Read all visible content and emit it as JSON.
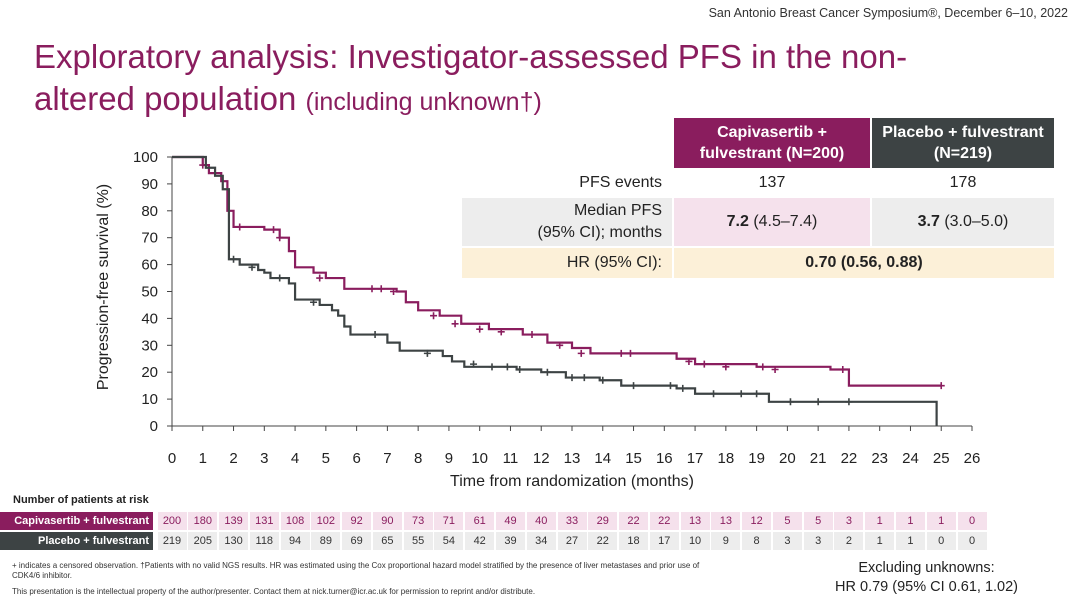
{
  "conference": "San Antonio Breast Cancer Symposium®, December 6–10, 2022",
  "title_main": "Exploratory analysis: Investigator-assessed PFS in the non-altered population",
  "title_sub": "(including unknown†)",
  "table": {
    "header_cap": "Capivasertib + fulvestrant (N=200)",
    "header_pla": "Placebo + fulvestrant (N=219)",
    "pfs_label": "PFS events",
    "pfs_cap": "137",
    "pfs_pla": "178",
    "median_label_1": "Median PFS",
    "median_label_2": "(95% CI); months",
    "median_cap_bold": "7.2",
    "median_cap_ci": "(4.5–7.4)",
    "median_pla_bold": "3.7",
    "median_pla_ci": "(3.0–5.0)",
    "hr_label": "HR (95% CI):",
    "hr_value": "0.70 (0.56, 0.88)"
  },
  "colors": {
    "capivasertib": "#8a1d5e",
    "placebo": "#3d4344",
    "table_median_cap": "#f5e1ec",
    "table_hr": "#fcf0d8"
  },
  "chart_data": {
    "type": "line",
    "xlabel": "Time from randomization (months)",
    "ylabel": "Progression-free survival (%)",
    "xlim": [
      0,
      26
    ],
    "ylim": [
      0,
      100
    ],
    "xticks": [
      0,
      1,
      2,
      3,
      4,
      5,
      6,
      7,
      8,
      9,
      10,
      11,
      12,
      13,
      14,
      15,
      16,
      17,
      18,
      19,
      20,
      21,
      22,
      23,
      24,
      25,
      26
    ],
    "yticks": [
      0,
      10,
      20,
      30,
      40,
      50,
      60,
      70,
      80,
      90,
      100
    ],
    "series": [
      {
        "name": "Capivasertib + fulvestrant",
        "color": "#8a1d5e",
        "steps": [
          [
            0,
            100
          ],
          [
            0.6,
            100
          ],
          [
            1.0,
            97
          ],
          [
            1.2,
            94
          ],
          [
            1.6,
            91
          ],
          [
            1.8,
            80
          ],
          [
            2.0,
            74
          ],
          [
            3.0,
            73
          ],
          [
            3.5,
            70
          ],
          [
            3.8,
            65
          ],
          [
            4.0,
            59
          ],
          [
            4.6,
            57
          ],
          [
            5.0,
            55
          ],
          [
            5.5,
            55
          ],
          [
            5.6,
            51
          ],
          [
            7.3,
            50
          ],
          [
            7.6,
            46
          ],
          [
            8.0,
            43
          ],
          [
            8.7,
            41
          ],
          [
            9.4,
            38
          ],
          [
            10.3,
            36
          ],
          [
            11.4,
            34
          ],
          [
            12.2,
            31
          ],
          [
            13.0,
            29
          ],
          [
            13.6,
            27
          ],
          [
            14.5,
            27
          ],
          [
            16.4,
            25
          ],
          [
            17.0,
            23
          ],
          [
            19.0,
            22
          ],
          [
            21.4,
            21
          ],
          [
            22.0,
            15
          ],
          [
            25.0,
            15
          ]
        ],
        "censored": [
          [
            1.0,
            97
          ],
          [
            2.2,
            74
          ],
          [
            3.3,
            73
          ],
          [
            3.5,
            70
          ],
          [
            4.8,
            55
          ],
          [
            6.5,
            51
          ],
          [
            6.8,
            51
          ],
          [
            7.2,
            50
          ],
          [
            8.5,
            41
          ],
          [
            9.2,
            38
          ],
          [
            10.0,
            36
          ],
          [
            10.7,
            35
          ],
          [
            11.7,
            34
          ],
          [
            12.6,
            30
          ],
          [
            13.3,
            27
          ],
          [
            14.6,
            27
          ],
          [
            14.9,
            27
          ],
          [
            16.8,
            24
          ],
          [
            17.3,
            23
          ],
          [
            18.0,
            22
          ],
          [
            19.2,
            22
          ],
          [
            19.6,
            21
          ],
          [
            21.8,
            21
          ],
          [
            25.0,
            15
          ]
        ],
        "at_risk": [
          200,
          180,
          139,
          131,
          108,
          102,
          92,
          90,
          73,
          71,
          61,
          49,
          40,
          33,
          29,
          22,
          22,
          13,
          13,
          12,
          5,
          5,
          3,
          1,
          1,
          1,
          0
        ]
      },
      {
        "name": "Placebo + fulvestrant",
        "color": "#3d4344",
        "steps": [
          [
            0,
            100
          ],
          [
            0.9,
            100
          ],
          [
            1.1,
            96
          ],
          [
            1.4,
            93
          ],
          [
            1.65,
            88
          ],
          [
            1.85,
            62
          ],
          [
            2.2,
            60
          ],
          [
            2.8,
            58
          ],
          [
            3.0,
            57
          ],
          [
            3.2,
            55
          ],
          [
            3.8,
            53
          ],
          [
            4.0,
            47
          ],
          [
            4.8,
            45
          ],
          [
            5.2,
            43
          ],
          [
            5.4,
            41
          ],
          [
            5.6,
            37
          ],
          [
            5.8,
            34
          ],
          [
            7.0,
            31
          ],
          [
            7.4,
            28
          ],
          [
            8.8,
            26
          ],
          [
            9.1,
            24
          ],
          [
            9.5,
            22
          ],
          [
            11.2,
            21
          ],
          [
            12.0,
            20
          ],
          [
            12.8,
            18
          ],
          [
            13.9,
            17
          ],
          [
            14.6,
            15
          ],
          [
            16.4,
            14
          ],
          [
            17.0,
            12
          ],
          [
            19.4,
            9
          ],
          [
            24.85,
            9
          ],
          [
            24.85,
            0
          ]
        ],
        "censored": [
          [
            2.0,
            62
          ],
          [
            2.6,
            59
          ],
          [
            3.5,
            55
          ],
          [
            4.6,
            46
          ],
          [
            6.6,
            34
          ],
          [
            8.3,
            27
          ],
          [
            9.8,
            23
          ],
          [
            10.4,
            22
          ],
          [
            10.9,
            22
          ],
          [
            11.3,
            21
          ],
          [
            12.2,
            20
          ],
          [
            13.0,
            18
          ],
          [
            13.4,
            18
          ],
          [
            14.0,
            17
          ],
          [
            15.0,
            15
          ],
          [
            16.2,
            15
          ],
          [
            16.6,
            14
          ],
          [
            17.6,
            12
          ],
          [
            18.5,
            12
          ],
          [
            19.0,
            12
          ],
          [
            20.1,
            9
          ],
          [
            21.0,
            9
          ],
          [
            22.0,
            9
          ]
        ],
        "at_risk": [
          219,
          205,
          130,
          118,
          94,
          89,
          69,
          65,
          55,
          54,
          42,
          39,
          34,
          27,
          22,
          18,
          17,
          10,
          9,
          8,
          3,
          3,
          2,
          1,
          1,
          0,
          0
        ]
      }
    ]
  },
  "risk": {
    "title": "Number of patients at risk",
    "cap_label": "Capivasertib + fulvestrant",
    "pla_label": "Placebo + fulvestrant"
  },
  "footnote_1": "+ indicates a censored observation. †Patients with no valid NGS results. HR was estimated using the Cox proportional hazard model stratified by the presence of liver metastases and prior use of CDK4/6 inhibitor.",
  "footnote_2": "This presentation is the intellectual property of the author/presenter. Contact them at nick.turner@icr.ac.uk for permission to reprint and/or distribute.",
  "excl_1": "Excluding unknowns:",
  "excl_2": "HR 0.79 (95% CI 0.61, 1.02)"
}
